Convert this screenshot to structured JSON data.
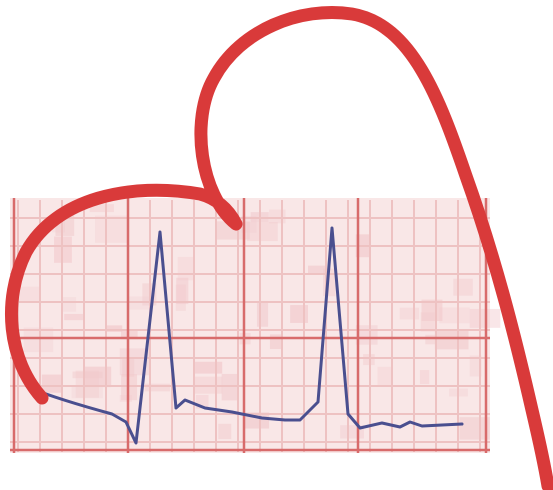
{
  "illustration": {
    "subject": "heart-outline-over-ecg-strip",
    "colors": {
      "heart_stroke": "#d93a3a",
      "grid_major": "#d86b6b",
      "grid_minor": "#eec2c2",
      "paper_fill": "#f9e7e7",
      "paper_blotch": "#f1c9cc",
      "ecg_trace": "#4a4f8f"
    }
  }
}
